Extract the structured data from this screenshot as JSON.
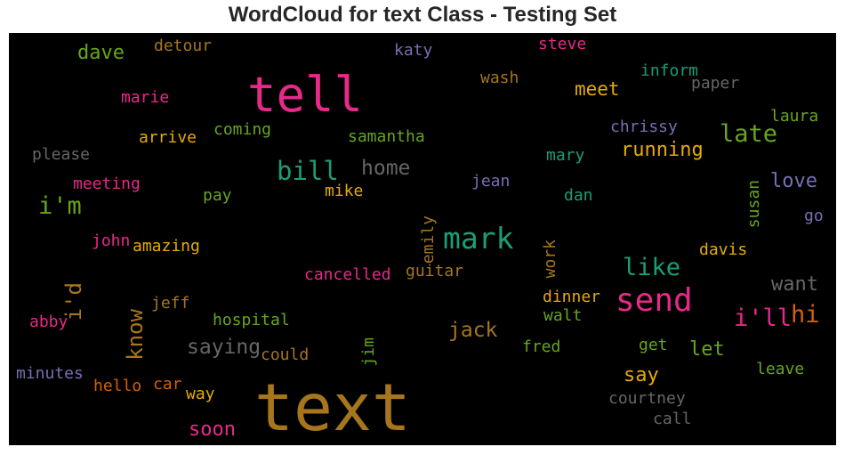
{
  "chart_data": {
    "type": "wordcloud",
    "title": "WordCloud for text Class - Testing Set",
    "background": "#000000",
    "colormap": "Dark2",
    "words": [
      {
        "text": "text",
        "weight": 1.0,
        "color": "#a6761d",
        "orientation": "horizontal"
      },
      {
        "text": "tell",
        "weight": 0.8,
        "color": "#e7298a",
        "orientation": "horizontal"
      },
      {
        "text": "mark",
        "weight": 0.55,
        "color": "#1b9e77",
        "orientation": "horizontal"
      },
      {
        "text": "send",
        "weight": 0.58,
        "color": "#e7298a",
        "orientation": "horizontal"
      },
      {
        "text": "bill",
        "weight": 0.45,
        "color": "#1b9e77",
        "orientation": "horizontal"
      },
      {
        "text": "i'm",
        "weight": 0.43,
        "color": "#66a61e",
        "orientation": "horizontal"
      },
      {
        "text": "like",
        "weight": 0.45,
        "color": "#1b9e77",
        "orientation": "horizontal"
      },
      {
        "text": "late",
        "weight": 0.43,
        "color": "#66a61e",
        "orientation": "horizontal"
      },
      {
        "text": "i'll",
        "weight": 0.43,
        "color": "#e7298a",
        "orientation": "horizontal"
      },
      {
        "text": "hi",
        "weight": 0.43,
        "color": "#d95f02",
        "orientation": "horizontal"
      },
      {
        "text": "home",
        "weight": 0.38,
        "color": "#666666",
        "orientation": "horizontal"
      },
      {
        "text": "jack",
        "weight": 0.38,
        "color": "#a6761d",
        "orientation": "horizontal"
      },
      {
        "text": "saying",
        "weight": 0.38,
        "color": "#666666",
        "orientation": "horizontal"
      },
      {
        "text": "soon",
        "weight": 0.36,
        "color": "#e7298a",
        "orientation": "horizontal"
      },
      {
        "text": "say",
        "weight": 0.36,
        "color": "#e6ab02",
        "orientation": "horizontal"
      },
      {
        "text": "let",
        "weight": 0.36,
        "color": "#66a61e",
        "orientation": "horizontal"
      },
      {
        "text": "want",
        "weight": 0.36,
        "color": "#666666",
        "orientation": "horizontal"
      },
      {
        "text": "love",
        "weight": 0.36,
        "color": "#7570b3",
        "orientation": "horizontal"
      },
      {
        "text": "running",
        "weight": 0.35,
        "color": "#e6ab02",
        "orientation": "horizontal"
      },
      {
        "text": "meet",
        "weight": 0.35,
        "color": "#e6ab02",
        "orientation": "horizontal"
      },
      {
        "text": "know",
        "weight": 0.36,
        "color": "#a6761d",
        "orientation": "vertical"
      },
      {
        "text": "i'd",
        "weight": 0.36,
        "color": "#a6761d",
        "orientation": "vertical"
      },
      {
        "text": "dave",
        "weight": 0.34,
        "color": "#66a61e",
        "orientation": "horizontal"
      },
      {
        "text": "detour",
        "weight": 0.28,
        "color": "#a6761d",
        "orientation": "horizontal"
      },
      {
        "text": "katy",
        "weight": 0.28,
        "color": "#7570b3",
        "orientation": "horizontal"
      },
      {
        "text": "steve",
        "weight": 0.28,
        "color": "#e7298a",
        "orientation": "horizontal"
      },
      {
        "text": "inform",
        "weight": 0.28,
        "color": "#1b9e77",
        "orientation": "horizontal"
      },
      {
        "text": "wash",
        "weight": 0.28,
        "color": "#a6761d",
        "orientation": "horizontal"
      },
      {
        "text": "paper",
        "weight": 0.28,
        "color": "#666666",
        "orientation": "horizontal"
      },
      {
        "text": "marie",
        "weight": 0.28,
        "color": "#e7298a",
        "orientation": "horizontal"
      },
      {
        "text": "laura",
        "weight": 0.28,
        "color": "#66a61e",
        "orientation": "horizontal"
      },
      {
        "text": "chrissy",
        "weight": 0.28,
        "color": "#7570b3",
        "orientation": "horizontal"
      },
      {
        "text": "coming",
        "weight": 0.28,
        "color": "#66a61e",
        "orientation": "horizontal"
      },
      {
        "text": "arrive",
        "weight": 0.28,
        "color": "#e6ab02",
        "orientation": "horizontal"
      },
      {
        "text": "samantha",
        "weight": 0.28,
        "color": "#66a61e",
        "orientation": "horizontal"
      },
      {
        "text": "please",
        "weight": 0.28,
        "color": "#666666",
        "orientation": "horizontal"
      },
      {
        "text": "mary",
        "weight": 0.28,
        "color": "#1b9e77",
        "orientation": "horizontal"
      },
      {
        "text": "susan",
        "weight": 0.28,
        "color": "#66a61e",
        "orientation": "vertical"
      },
      {
        "text": "meeting",
        "weight": 0.28,
        "color": "#e7298a",
        "orientation": "horizontal"
      },
      {
        "text": "jean",
        "weight": 0.28,
        "color": "#7570b3",
        "orientation": "horizontal"
      },
      {
        "text": "pay",
        "weight": 0.28,
        "color": "#66a61e",
        "orientation": "horizontal"
      },
      {
        "text": "mike",
        "weight": 0.28,
        "color": "#e6ab02",
        "orientation": "horizontal"
      },
      {
        "text": "dan",
        "weight": 0.28,
        "color": "#1b9e77",
        "orientation": "horizontal"
      },
      {
        "text": "emily",
        "weight": 0.28,
        "color": "#a6761d",
        "orientation": "vertical"
      },
      {
        "text": "go",
        "weight": 0.28,
        "color": "#7570b3",
        "orientation": "horizontal"
      },
      {
        "text": "john",
        "weight": 0.28,
        "color": "#e7298a",
        "orientation": "horizontal"
      },
      {
        "text": "amazing",
        "weight": 0.28,
        "color": "#e6ab02",
        "orientation": "horizontal"
      },
      {
        "text": "work",
        "weight": 0.28,
        "color": "#a6761d",
        "orientation": "vertical"
      },
      {
        "text": "davis",
        "weight": 0.28,
        "color": "#e6ab02",
        "orientation": "horizontal"
      },
      {
        "text": "cancelled",
        "weight": 0.28,
        "color": "#e7298a",
        "orientation": "horizontal"
      },
      {
        "text": "guitar",
        "weight": 0.28,
        "color": "#a6761d",
        "orientation": "horizontal"
      },
      {
        "text": "jeff",
        "weight": 0.28,
        "color": "#a6761d",
        "orientation": "horizontal"
      },
      {
        "text": "dinner",
        "weight": 0.28,
        "color": "#e6ab02",
        "orientation": "horizontal"
      },
      {
        "text": "walt",
        "weight": 0.28,
        "color": "#66a61e",
        "orientation": "horizontal"
      },
      {
        "text": "hospital",
        "weight": 0.28,
        "color": "#66a61e",
        "orientation": "horizontal"
      },
      {
        "text": "abby",
        "weight": 0.28,
        "color": "#e7298a",
        "orientation": "horizontal"
      },
      {
        "text": "could",
        "weight": 0.28,
        "color": "#a6761d",
        "orientation": "horizontal"
      },
      {
        "text": "jim",
        "weight": 0.28,
        "color": "#66a61e",
        "orientation": "vertical"
      },
      {
        "text": "fred",
        "weight": 0.28,
        "color": "#66a61e",
        "orientation": "horizontal"
      },
      {
        "text": "get",
        "weight": 0.28,
        "color": "#66a61e",
        "orientation": "horizontal"
      },
      {
        "text": "minutes",
        "weight": 0.28,
        "color": "#7570b3",
        "orientation": "horizontal"
      },
      {
        "text": "leave",
        "weight": 0.28,
        "color": "#66a61e",
        "orientation": "horizontal"
      },
      {
        "text": "hello",
        "weight": 0.28,
        "color": "#d95f02",
        "orientation": "horizontal"
      },
      {
        "text": "car",
        "weight": 0.28,
        "color": "#d95f02",
        "orientation": "horizontal"
      },
      {
        "text": "way",
        "weight": 0.28,
        "color": "#e6ab02",
        "orientation": "horizontal"
      },
      {
        "text": "courtney",
        "weight": 0.28,
        "color": "#666666",
        "orientation": "horizontal"
      },
      {
        "text": "call",
        "weight": 0.28,
        "color": "#666666",
        "orientation": "horizontal"
      }
    ]
  }
}
